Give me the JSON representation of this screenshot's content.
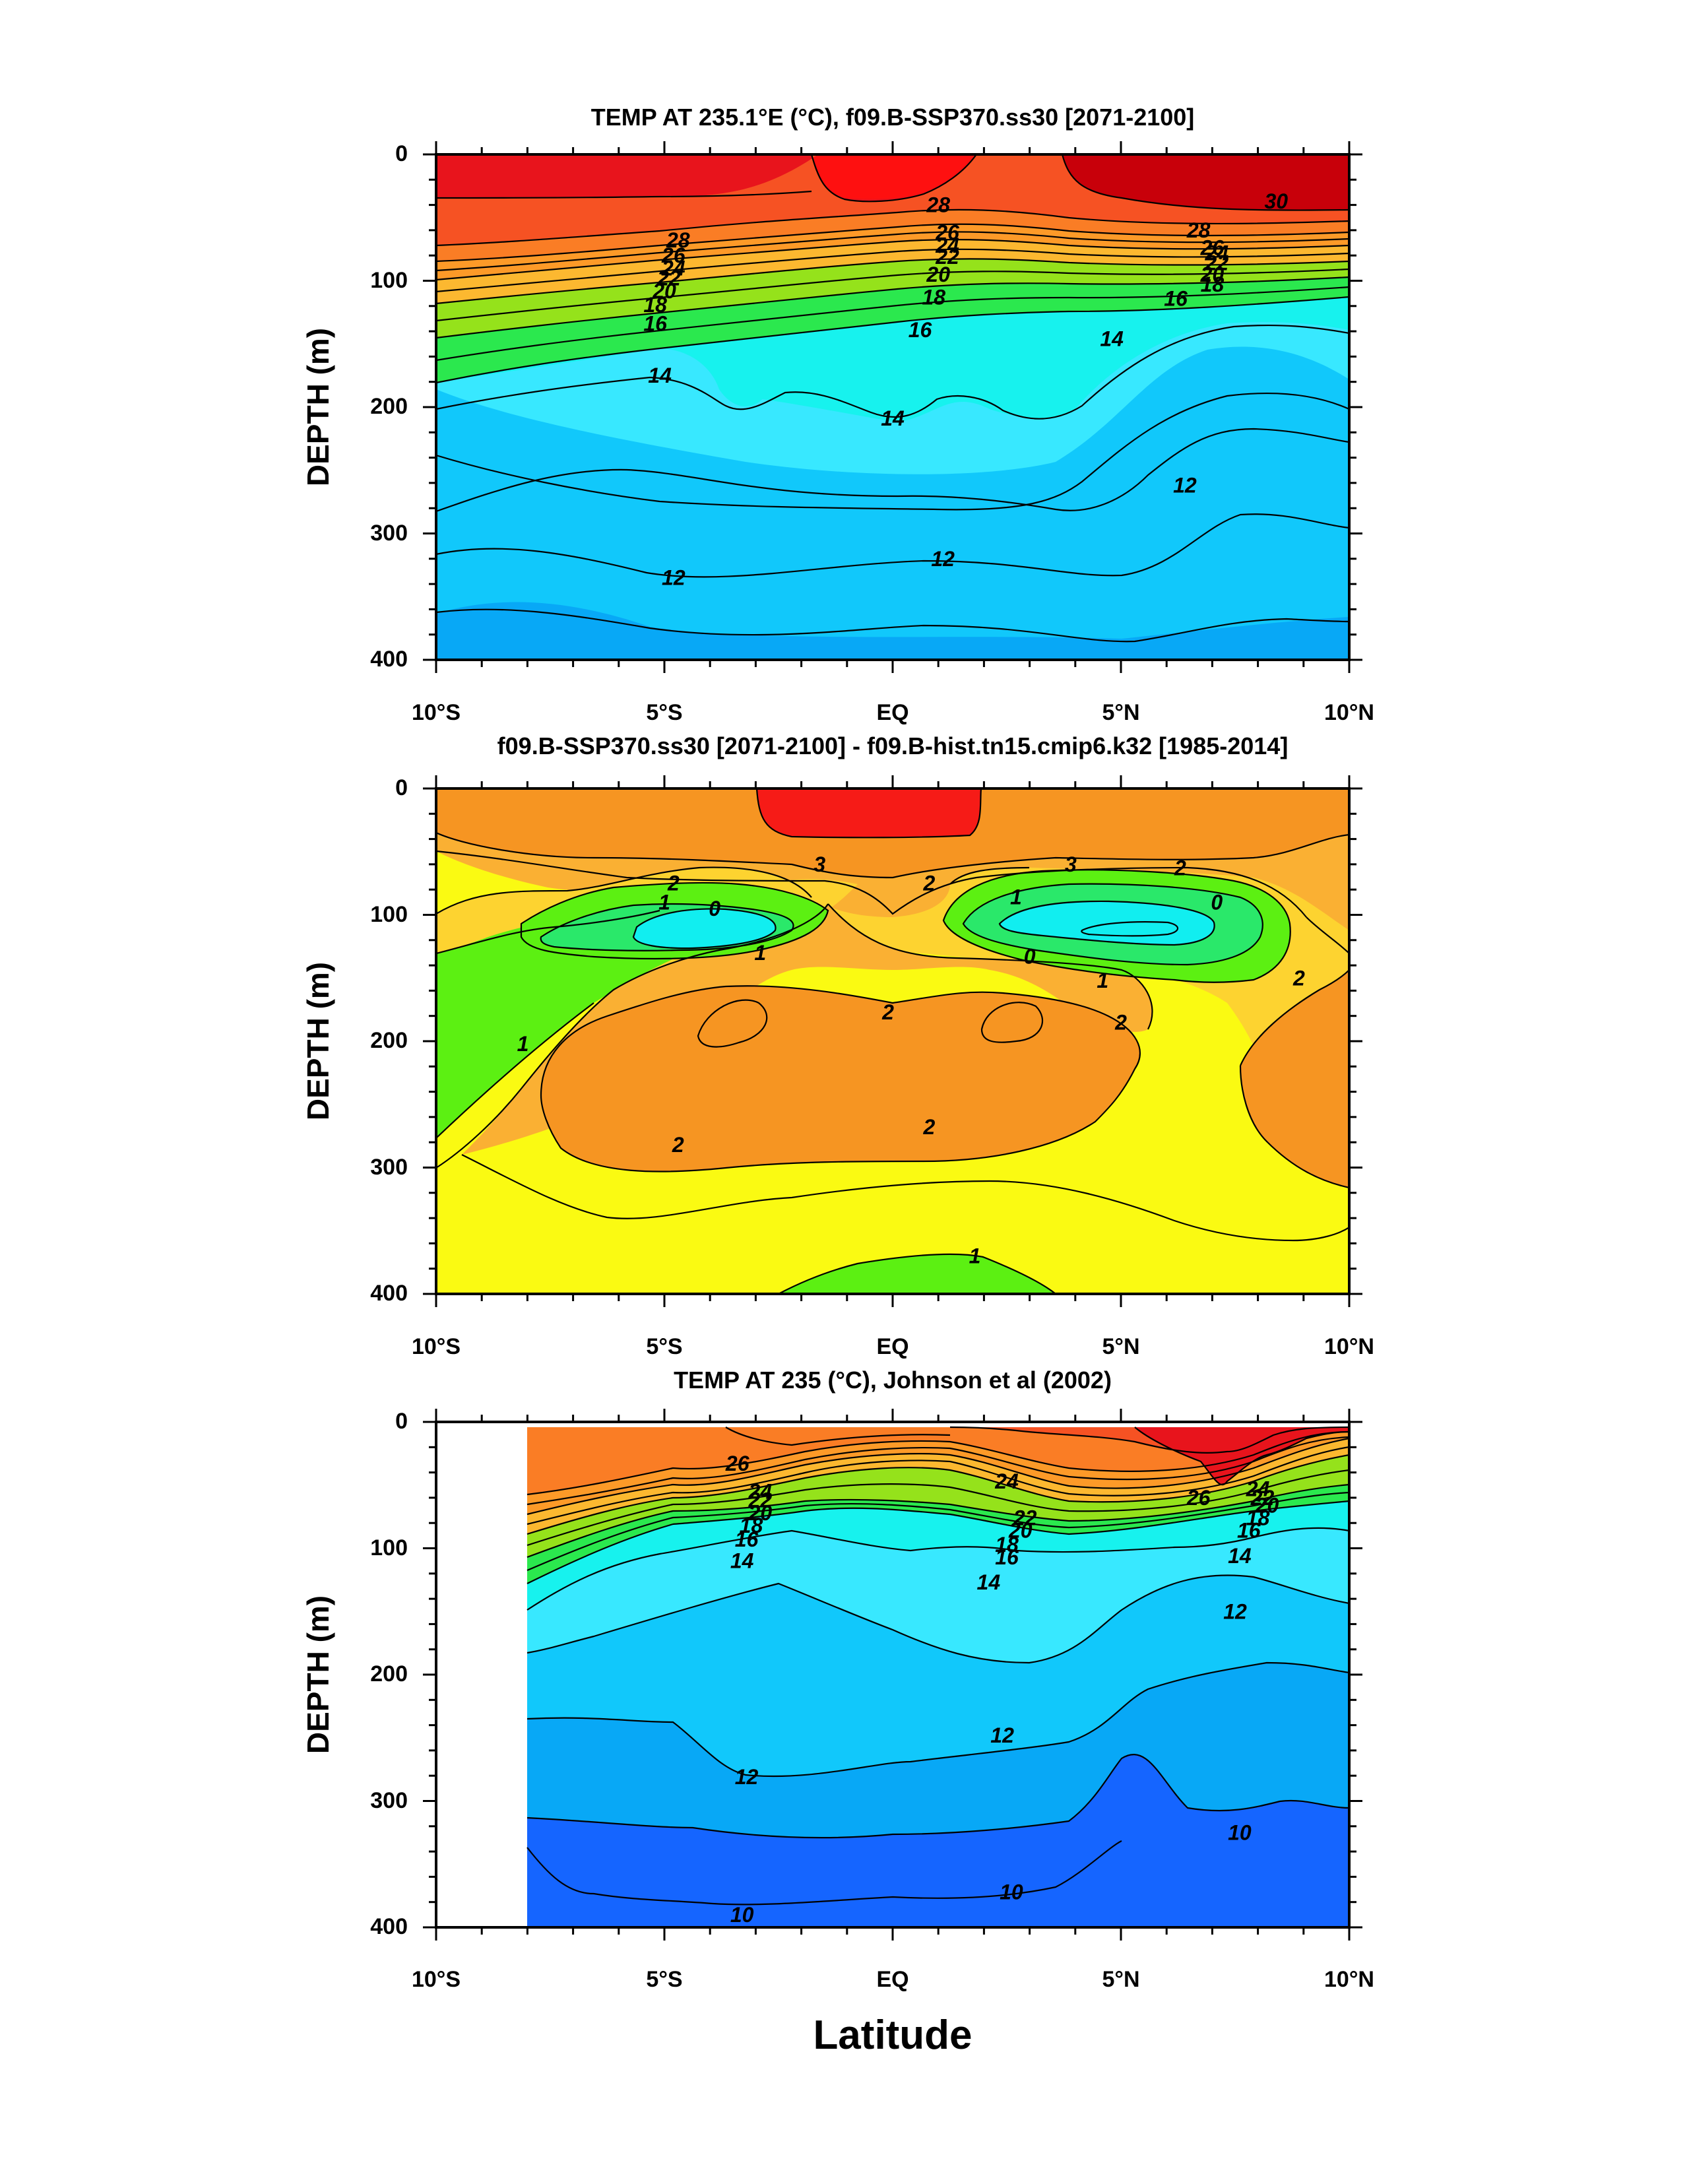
{
  "figure": {
    "xlabel": "Latitude",
    "colors": {
      "t30": "#c8000a",
      "t28": "#e8141c",
      "t26": "#f65223",
      "t24": "#fa7d25",
      "t22": "#fd9a28",
      "t20": "#fcb830",
      "t18": "#95e21b",
      "t16": "#2be84e",
      "t14": "#17f2ee",
      "t13": "#38e8ff",
      "t12": "#11c8fb",
      "t11": "#08a8f6",
      "t10": "#1565ff",
      "d3": "#f61b17",
      "d25": "#f69522",
      "d2": "#fab033",
      "d15": "#fdd330",
      "d1": "#fafa12",
      "d05": "#5cf012",
      "d0": "#2ae86a",
      "dneg": "#11eef0"
    }
  },
  "chart_data": [
    {
      "type": "contour",
      "title": "TEMP AT 235.1°E (°C), f09.B-SSP370.ss30 [2071-2100]",
      "ylabel": "DEPTH (m)",
      "xlim": [
        -10,
        10
      ],
      "ylim": [
        400,
        0
      ],
      "xticks": [
        -10,
        -5,
        0,
        5,
        10
      ],
      "xticklabels": [
        "10°S",
        "5°S",
        "EQ",
        "5°N",
        "10°N"
      ],
      "yticks": [
        0,
        100,
        200,
        300,
        400
      ],
      "yticklabels": [
        "0",
        "100",
        "200",
        "300",
        "400"
      ],
      "contour_labels": [
        {
          "text": "28",
          "lat": -4.7,
          "depth": 68
        },
        {
          "text": "26",
          "lat": -4.8,
          "depth": 80
        },
        {
          "text": "24",
          "lat": -4.8,
          "depth": 90
        },
        {
          "text": "22",
          "lat": -4.9,
          "depth": 98
        },
        {
          "text": "20",
          "lat": -5.0,
          "depth": 108
        },
        {
          "text": "18",
          "lat": -5.2,
          "depth": 119
        },
        {
          "text": "16",
          "lat": -5.2,
          "depth": 134
        },
        {
          "text": "14",
          "lat": -5.1,
          "depth": 175
        },
        {
          "text": "28",
          "lat": 1.0,
          "depth": 40
        },
        {
          "text": "26",
          "lat": 1.2,
          "depth": 62
        },
        {
          "text": "24",
          "lat": 1.2,
          "depth": 72
        },
        {
          "text": "22",
          "lat": 1.2,
          "depth": 81
        },
        {
          "text": "20",
          "lat": 1.0,
          "depth": 95
        },
        {
          "text": "18",
          "lat": 0.9,
          "depth": 113
        },
        {
          "text": "16",
          "lat": 0.6,
          "depth": 139
        },
        {
          "text": "14",
          "lat": 0.0,
          "depth": 209
        },
        {
          "text": "14",
          "lat": 4.8,
          "depth": 146
        },
        {
          "text": "16",
          "lat": 6.2,
          "depth": 114
        },
        {
          "text": "18",
          "lat": 7.0,
          "depth": 103
        },
        {
          "text": "20",
          "lat": 7.0,
          "depth": 95
        },
        {
          "text": "22",
          "lat": 7.1,
          "depth": 86
        },
        {
          "text": "24",
          "lat": 7.1,
          "depth": 78
        },
        {
          "text": "26",
          "lat": 7.0,
          "depth": 74
        },
        {
          "text": "28",
          "lat": 6.7,
          "depth": 60
        },
        {
          "text": "30",
          "lat": 8.4,
          "depth": 37
        },
        {
          "text": "12",
          "lat": 6.4,
          "depth": 262
        },
        {
          "text": "12",
          "lat": -4.8,
          "depth": 335
        },
        {
          "text": "12",
          "lat": 1.1,
          "depth": 320
        }
      ]
    },
    {
      "type": "contour",
      "title": "f09.B-SSP370.ss30 [2071-2100] - f09.B-hist.tn15.cmip6.k32 [1985-2014]",
      "ylabel": "DEPTH (m)",
      "xlim": [
        -10,
        10
      ],
      "ylim": [
        400,
        0
      ],
      "xticks": [
        -10,
        -5,
        0,
        5,
        10
      ],
      "xticklabels": [
        "10°S",
        "5°S",
        "EQ",
        "5°N",
        "10°N"
      ],
      "yticks": [
        0,
        100,
        200,
        300,
        400
      ],
      "yticklabels": [
        "0",
        "100",
        "200",
        "300",
        "400"
      ],
      "contour_labels": [
        {
          "text": "3",
          "lat": -1.6,
          "depth": 60
        },
        {
          "text": "3",
          "lat": 3.9,
          "depth": 60
        },
        {
          "text": "2",
          "lat": 6.3,
          "depth": 63
        },
        {
          "text": "2",
          "lat": -4.8,
          "depth": 75
        },
        {
          "text": "2",
          "lat": 0.8,
          "depth": 75
        },
        {
          "text": "1",
          "lat": -5.0,
          "depth": 90
        },
        {
          "text": "1",
          "lat": 2.7,
          "depth": 86
        },
        {
          "text": "0",
          "lat": -3.9,
          "depth": 95
        },
        {
          "text": "0",
          "lat": 7.1,
          "depth": 90
        },
        {
          "text": "0",
          "lat": 3.0,
          "depth": 133
        },
        {
          "text": "1",
          "lat": -2.9,
          "depth": 130
        },
        {
          "text": "1",
          "lat": 4.6,
          "depth": 152
        },
        {
          "text": "2",
          "lat": 8.9,
          "depth": 150
        },
        {
          "text": "2",
          "lat": 5.0,
          "depth": 185
        },
        {
          "text": "2",
          "lat": -0.1,
          "depth": 177
        },
        {
          "text": "1",
          "lat": -8.1,
          "depth": 202
        },
        {
          "text": "2",
          "lat": -4.7,
          "depth": 282
        },
        {
          "text": "2",
          "lat": 0.8,
          "depth": 268
        },
        {
          "text": "1",
          "lat": 1.8,
          "depth": 370
        }
      ]
    },
    {
      "type": "contour",
      "title": "TEMP AT 235 (°C), Johnson et al (2002)",
      "ylabel": "DEPTH (m)",
      "xlim": [
        -10,
        10
      ],
      "ylim": [
        400,
        0
      ],
      "xticks": [
        -10,
        -5,
        0,
        5,
        10
      ],
      "xticklabels": [
        "10°S",
        "5°S",
        "EQ",
        "5°N",
        "10°N"
      ],
      "yticks": [
        0,
        100,
        200,
        300,
        400
      ],
      "yticklabels": [
        "0",
        "100",
        "200",
        "300",
        "400"
      ],
      "contour_labels": [
        {
          "text": "26",
          "lat": -3.4,
          "depth": 33
        },
        {
          "text": "24",
          "lat": -2.9,
          "depth": 55
        },
        {
          "text": "22",
          "lat": -2.9,
          "depth": 62
        },
        {
          "text": "20",
          "lat": -2.9,
          "depth": 72
        },
        {
          "text": "18",
          "lat": -3.1,
          "depth": 82
        },
        {
          "text": "16",
          "lat": -3.2,
          "depth": 93
        },
        {
          "text": "14",
          "lat": -3.3,
          "depth": 110
        },
        {
          "text": "24",
          "lat": 2.5,
          "depth": 47
        },
        {
          "text": "22",
          "lat": 2.9,
          "depth": 76
        },
        {
          "text": "20",
          "lat": 2.8,
          "depth": 86
        },
        {
          "text": "18",
          "lat": 2.5,
          "depth": 97
        },
        {
          "text": "16",
          "lat": 2.5,
          "depth": 107
        },
        {
          "text": "14",
          "lat": 2.1,
          "depth": 127
        },
        {
          "text": "26",
          "lat": 6.7,
          "depth": 60
        },
        {
          "text": "24",
          "lat": 8.0,
          "depth": 53
        },
        {
          "text": "22",
          "lat": 8.1,
          "depth": 60
        },
        {
          "text": "20",
          "lat": 8.2,
          "depth": 66
        },
        {
          "text": "18",
          "lat": 8.0,
          "depth": 76
        },
        {
          "text": "16",
          "lat": 7.8,
          "depth": 86
        },
        {
          "text": "14",
          "lat": 7.6,
          "depth": 106
        },
        {
          "text": "12",
          "lat": 7.5,
          "depth": 150
        },
        {
          "text": "12",
          "lat": 2.4,
          "depth": 248
        },
        {
          "text": "12",
          "lat": -3.2,
          "depth": 281
        },
        {
          "text": "10",
          "lat": 7.6,
          "depth": 325
        },
        {
          "text": "10",
          "lat": 2.6,
          "depth": 372
        },
        {
          "text": "10",
          "lat": -3.3,
          "depth": 390
        }
      ]
    }
  ]
}
